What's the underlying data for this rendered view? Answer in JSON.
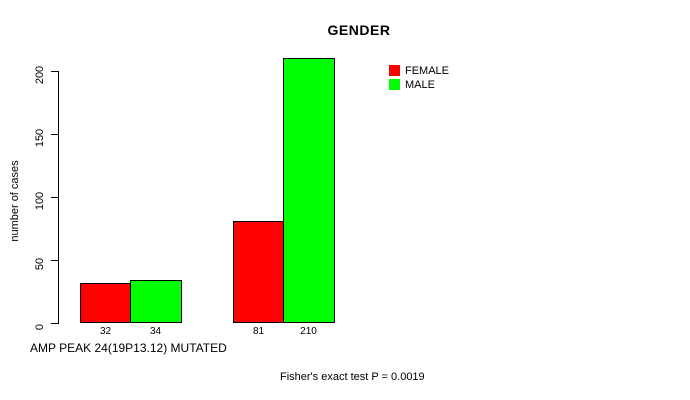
{
  "chart_data": {
    "type": "bar",
    "title": "GENDER",
    "ylabel": "number of cases",
    "xlabel": "AMP PEAK 24(19P13.12) MUTATED",
    "footnote": "Fisher's exact test P = 0.0019",
    "ylim": [
      0,
      200
    ],
    "yticks": [
      0,
      50,
      100,
      150,
      200
    ],
    "grid": false,
    "legend_position": "top-right",
    "series": [
      {
        "name": "FEMALE",
        "color": "#FF0000",
        "values": [
          32,
          81
        ]
      },
      {
        "name": "MALE",
        "color": "#00FF00",
        "values": [
          34,
          210
        ]
      }
    ],
    "bar_value_labels": [
      [
        "32",
        "34"
      ],
      [
        "81",
        "210"
      ]
    ]
  },
  "colors": {
    "axis": "#000000",
    "background": "#FFFFFF",
    "female": "#FF0000",
    "male": "#00FF00"
  }
}
